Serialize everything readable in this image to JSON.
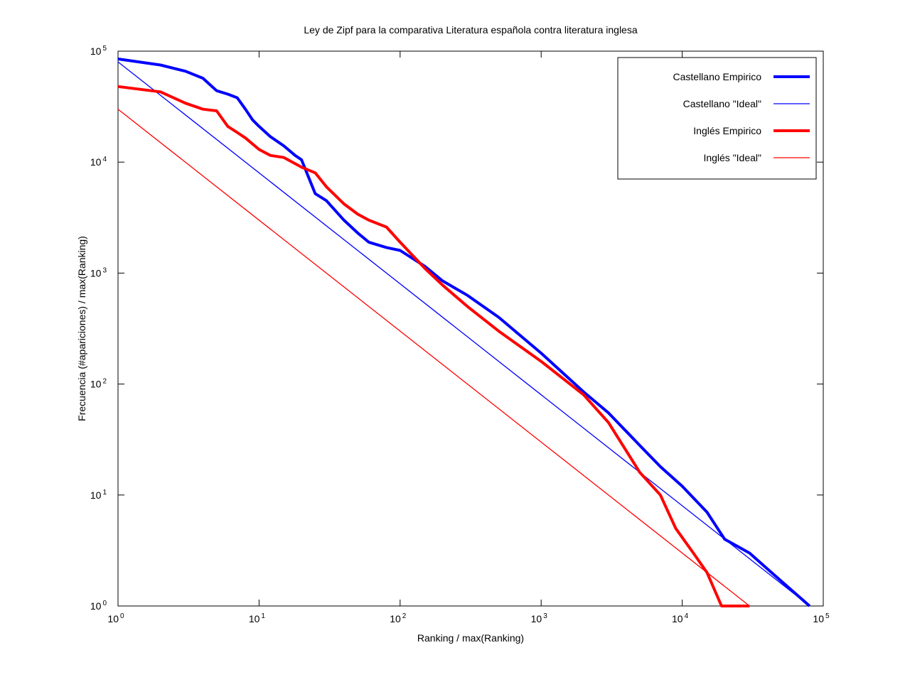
{
  "chart_data": {
    "type": "line",
    "title": "Ley de Zipf para la comparativa Literatura española contra literatura inglesa",
    "xlabel": "Ranking / max(Ranking)",
    "ylabel": "Frecuencia (#apariciones) / max(Ranking)",
    "xscale": "log",
    "yscale": "log",
    "xlim": [
      1,
      100000
    ],
    "ylim": [
      1,
      100000
    ],
    "tick_base": "10",
    "xticks": [
      {
        "value": 1,
        "exp": "0"
      },
      {
        "value": 10,
        "exp": "1"
      },
      {
        "value": 100,
        "exp": "2"
      },
      {
        "value": 1000,
        "exp": "3"
      },
      {
        "value": 10000,
        "exp": "4"
      },
      {
        "value": 100000,
        "exp": "5"
      }
    ],
    "yticks": [
      {
        "value": 1,
        "exp": "0"
      },
      {
        "value": 10,
        "exp": "1"
      },
      {
        "value": 100,
        "exp": "2"
      },
      {
        "value": 1000,
        "exp": "3"
      },
      {
        "value": 10000,
        "exp": "4"
      },
      {
        "value": 100000,
        "exp": "5"
      }
    ],
    "grid": false,
    "legend_position": "top-right",
    "series": [
      {
        "name": "Castellano Empirico",
        "color": "#0000ff",
        "style": "thick",
        "x": [
          1,
          2,
          3,
          4,
          5,
          6,
          7,
          8,
          9,
          10,
          12,
          15,
          18,
          20,
          25,
          30,
          40,
          50,
          60,
          80,
          100,
          150,
          200,
          300,
          500,
          1000,
          2000,
          3000,
          5000,
          7000,
          10000,
          15000,
          20000,
          30000,
          43000,
          80000
        ],
        "y": [
          85000,
          75000,
          66000,
          57000,
          44000,
          41000,
          38000,
          30000,
          24000,
          21000,
          17000,
          14000,
          11500,
          10500,
          5200,
          4500,
          3000,
          2300,
          1900,
          1700,
          1600,
          1150,
          850,
          630,
          400,
          190,
          85,
          55,
          28,
          18,
          12,
          7,
          4,
          3,
          2,
          1
        ]
      },
      {
        "name": "Castellano \"Ideal\"",
        "color": "#0000ff",
        "style": "thin",
        "x": [
          1,
          80000
        ],
        "y": [
          80000,
          1
        ]
      },
      {
        "name": "Inglés Empirico",
        "color": "#ff0000",
        "style": "thick",
        "x": [
          1,
          2,
          3,
          4,
          5,
          6,
          7,
          8,
          10,
          12,
          15,
          20,
          25,
          30,
          40,
          50,
          60,
          80,
          100,
          150,
          200,
          300,
          500,
          1000,
          2000,
          3000,
          5000,
          7000,
          9000,
          12000,
          15000,
          19000,
          30000
        ],
        "y": [
          48000,
          43000,
          34000,
          30000,
          29000,
          21000,
          18500,
          16500,
          13000,
          11500,
          11000,
          9000,
          8000,
          6000,
          4200,
          3400,
          3000,
          2600,
          1900,
          1100,
          780,
          500,
          300,
          160,
          80,
          45,
          16,
          10,
          5,
          3,
          2,
          1,
          1
        ]
      },
      {
        "name": "Inglés \"Ideal\"",
        "color": "#ff0000",
        "style": "thin",
        "x": [
          1,
          30000
        ],
        "y": [
          30000,
          1
        ]
      }
    ]
  }
}
